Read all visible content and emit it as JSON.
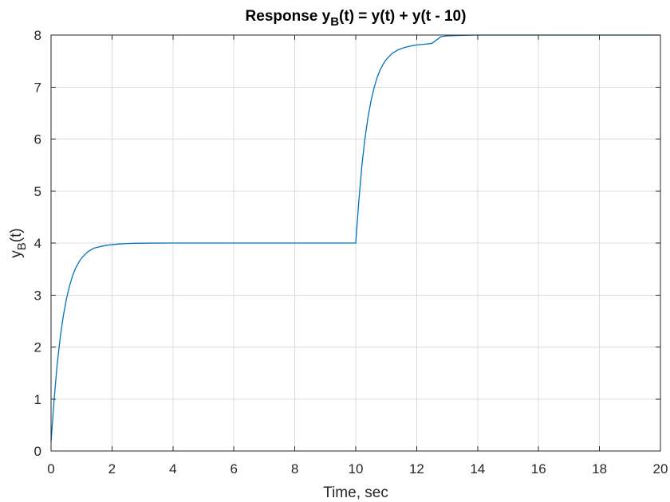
{
  "chart_data": {
    "type": "line",
    "title": {
      "prefix": "Response y",
      "subscript": "B",
      "suffix": "(t) = y(t) + y(t - 10)"
    },
    "xlabel": "Time, sec",
    "ylabel": {
      "prefix": "y",
      "subscript": "B",
      "suffix": "(t)"
    },
    "xlim": [
      0,
      20
    ],
    "ylim": [
      0,
      8
    ],
    "xticks": [
      0,
      2,
      4,
      6,
      8,
      10,
      12,
      14,
      16,
      18,
      20
    ],
    "yticks": [
      0,
      1,
      2,
      3,
      4,
      5,
      6,
      7,
      8
    ],
    "grid": true,
    "series": [
      {
        "color": "#0072BD",
        "x": [
          0,
          0.1,
          0.2,
          0.3,
          0.4,
          0.5,
          0.6,
          0.7,
          0.8,
          0.9,
          1.0,
          1.2,
          1.4,
          1.6,
          1.8,
          2.0,
          2.2,
          2.5,
          2.8,
          3.0,
          3.5,
          4.0,
          5.0,
          6.0,
          7.0,
          8.0,
          9.0,
          10.0,
          10.1,
          10.2,
          10.3,
          10.4,
          10.5,
          10.6,
          10.7,
          10.8,
          10.9,
          11.0,
          11.2,
          11.4,
          11.6,
          11.8,
          12.0,
          12.2,
          12.5,
          12.8,
          13.0,
          13.5,
          14.0,
          15.0,
          16.0,
          17.0,
          18.0,
          19.0,
          20.0
        ],
        "y": [
          0.18,
          0.98,
          1.66,
          2.18,
          2.59,
          2.91,
          3.16,
          3.36,
          3.51,
          3.62,
          3.71,
          3.83,
          3.9,
          3.93,
          3.955,
          3.97,
          3.98,
          3.99,
          3.995,
          3.997,
          3.999,
          4.0,
          4.0,
          4.0,
          4.0,
          4.0,
          4.0,
          4.0,
          4.8,
          5.48,
          6.0,
          6.41,
          6.73,
          6.98,
          7.18,
          7.33,
          7.44,
          7.53,
          7.65,
          7.72,
          7.76,
          7.79,
          7.81,
          7.82,
          7.84,
          7.97,
          7.985,
          7.995,
          8.0,
          8.0,
          8.0,
          8.0,
          8.0,
          8.0,
          8.0
        ]
      }
    ]
  }
}
